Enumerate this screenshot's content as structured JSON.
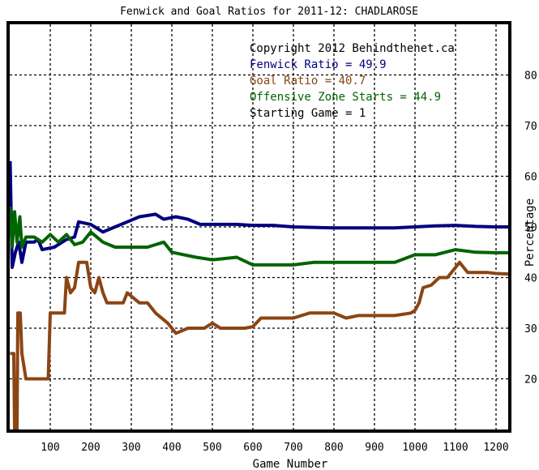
{
  "chart_data": {
    "type": "line",
    "title": "Fenwick and Goal Ratios for 2011-12: CHADLAROSE",
    "xlabel": "Game Number",
    "ylabel": "Percentage",
    "xlim": [
      0,
      1230
    ],
    "ylim": [
      10,
      90
    ],
    "x_ticks": [
      "100",
      "200",
      "300",
      "400",
      "500",
      "600",
      "700",
      "800",
      "900",
      "1000",
      "1100",
      "1200"
    ],
    "y_ticks": [
      "20",
      "30",
      "40",
      "50",
      "60",
      "70",
      "80"
    ],
    "grid": true,
    "legend_position": "top-right",
    "annotations": [
      {
        "text": "Copyright 2012 Behindthenet.ca",
        "color": "#000000"
      },
      {
        "text": "Fenwick Ratio = 49.9",
        "color": "#000080"
      },
      {
        "text": "Goal Ratio = 40.7",
        "color": "#8b4513"
      },
      {
        "text": "Offensive Zone Starts = 44.9",
        "color": "#006400"
      },
      {
        "text": "Starting Game = 1",
        "color": "#000000"
      }
    ],
    "series": [
      {
        "name": "Fenwick Ratio",
        "color": "#000080",
        "points": [
          [
            1,
            63
          ],
          [
            6,
            42
          ],
          [
            14,
            45
          ],
          [
            22,
            47
          ],
          [
            30,
            43
          ],
          [
            40,
            47
          ],
          [
            50,
            47
          ],
          [
            60,
            47
          ],
          [
            70,
            47.5
          ],
          [
            80,
            45.5
          ],
          [
            110,
            46
          ],
          [
            140,
            47.5
          ],
          [
            160,
            48
          ],
          [
            170,
            51
          ],
          [
            200,
            50.5
          ],
          [
            230,
            49
          ],
          [
            260,
            50
          ],
          [
            290,
            51
          ],
          [
            320,
            52
          ],
          [
            360,
            52.5
          ],
          [
            380,
            51.5
          ],
          [
            410,
            52
          ],
          [
            440,
            51.5
          ],
          [
            470,
            50.5
          ],
          [
            500,
            50.5
          ],
          [
            560,
            50.5
          ],
          [
            600,
            50.3
          ],
          [
            650,
            50.3
          ],
          [
            700,
            50
          ],
          [
            800,
            49.8
          ],
          [
            900,
            49.8
          ],
          [
            950,
            49.8
          ],
          [
            1000,
            50
          ],
          [
            1050,
            50.2
          ],
          [
            1100,
            50.3
          ],
          [
            1150,
            50.1
          ],
          [
            1200,
            50
          ],
          [
            1230,
            50
          ]
        ]
      },
      {
        "name": "Goal Ratio",
        "color": "#8b4513",
        "points": [
          [
            1,
            25
          ],
          [
            10,
            25
          ],
          [
            12,
            10
          ],
          [
            18,
            10
          ],
          [
            20,
            33
          ],
          [
            26,
            33
          ],
          [
            30,
            25
          ],
          [
            40,
            20
          ],
          [
            95,
            20
          ],
          [
            100,
            33
          ],
          [
            135,
            33
          ],
          [
            140,
            40
          ],
          [
            150,
            37
          ],
          [
            160,
            38
          ],
          [
            170,
            43
          ],
          [
            190,
            43
          ],
          [
            200,
            38
          ],
          [
            210,
            37
          ],
          [
            220,
            40
          ],
          [
            230,
            37
          ],
          [
            240,
            35
          ],
          [
            280,
            35
          ],
          [
            290,
            37
          ],
          [
            320,
            35
          ],
          [
            340,
            35
          ],
          [
            360,
            33
          ],
          [
            390,
            31
          ],
          [
            410,
            29
          ],
          [
            440,
            30
          ],
          [
            480,
            30
          ],
          [
            500,
            31
          ],
          [
            520,
            30
          ],
          [
            560,
            30
          ],
          [
            580,
            30
          ],
          [
            600,
            30.3
          ],
          [
            620,
            32
          ],
          [
            700,
            32
          ],
          [
            740,
            33
          ],
          [
            800,
            33
          ],
          [
            830,
            32
          ],
          [
            860,
            32.5
          ],
          [
            900,
            32.5
          ],
          [
            950,
            32.5
          ],
          [
            990,
            33
          ],
          [
            1000,
            33.5
          ],
          [
            1010,
            35
          ],
          [
            1020,
            38
          ],
          [
            1040,
            38.5
          ],
          [
            1060,
            40
          ],
          [
            1080,
            40
          ],
          [
            1090,
            41
          ],
          [
            1100,
            42
          ],
          [
            1110,
            43
          ],
          [
            1130,
            41
          ],
          [
            1180,
            41
          ],
          [
            1200,
            40.8
          ],
          [
            1230,
            40.7
          ]
        ]
      },
      {
        "name": "Offensive Zone Starts",
        "color": "#006400",
        "points": [
          [
            1,
            54
          ],
          [
            6,
            46
          ],
          [
            12,
            53
          ],
          [
            18,
            47
          ],
          [
            25,
            52
          ],
          [
            30,
            46
          ],
          [
            40,
            48
          ],
          [
            60,
            48
          ],
          [
            80,
            47
          ],
          [
            100,
            48.5
          ],
          [
            120,
            47
          ],
          [
            140,
            48.5
          ],
          [
            160,
            46.5
          ],
          [
            180,
            47
          ],
          [
            200,
            49
          ],
          [
            230,
            47
          ],
          [
            260,
            46
          ],
          [
            300,
            46
          ],
          [
            340,
            46
          ],
          [
            360,
            46.5
          ],
          [
            380,
            47
          ],
          [
            400,
            45
          ],
          [
            430,
            44.5
          ],
          [
            460,
            44
          ],
          [
            500,
            43.5
          ],
          [
            560,
            44
          ],
          [
            600,
            42.5
          ],
          [
            650,
            42.5
          ],
          [
            700,
            42.5
          ],
          [
            750,
            43
          ],
          [
            800,
            43
          ],
          [
            900,
            43
          ],
          [
            950,
            43
          ],
          [
            1000,
            44.5
          ],
          [
            1050,
            44.5
          ],
          [
            1100,
            45.5
          ],
          [
            1150,
            45
          ],
          [
            1200,
            44.9
          ],
          [
            1230,
            44.9
          ]
        ]
      }
    ]
  }
}
